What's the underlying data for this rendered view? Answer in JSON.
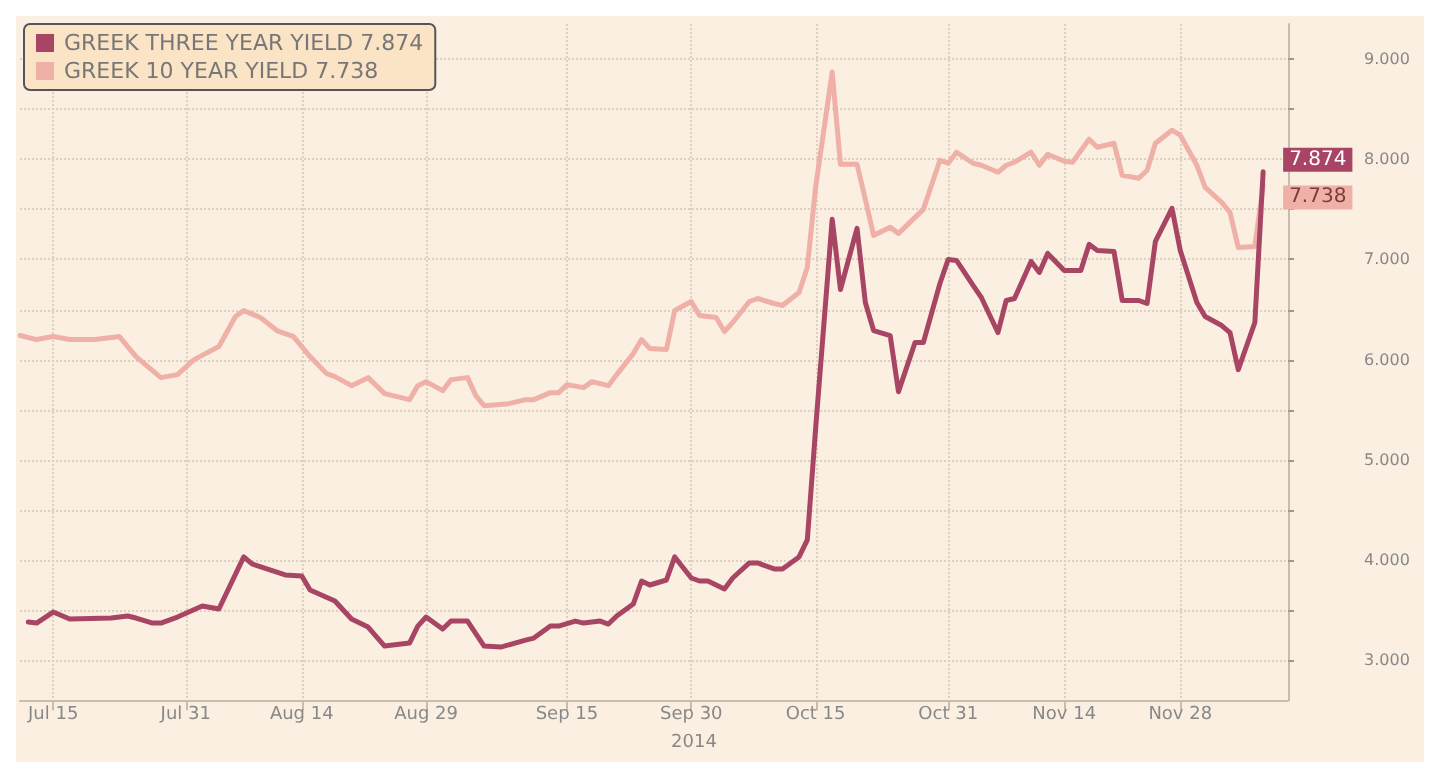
{
  "chart_data": {
    "type": "line",
    "xlabel": "2014",
    "legend": "top left",
    "grid": true,
    "marker": "none",
    "line_style": "solid",
    "xlim": [
      "2014-07-11",
      "2014-12-11"
    ],
    "xticks": [
      {
        "value": "2014-07-15",
        "label": "Jul 15"
      },
      {
        "value": "2014-07-31",
        "label": "Jul 31"
      },
      {
        "value": "2014-08-14",
        "label": "Aug 14"
      },
      {
        "value": "2014-08-29",
        "label": "Aug 29"
      },
      {
        "value": "2014-09-15",
        "label": "Sep 15"
      },
      {
        "value": "2014-09-30",
        "label": "Sep 30"
      },
      {
        "value": "2014-10-15",
        "label": "Oct 15"
      },
      {
        "value": "2014-10-31",
        "label": "Oct 31"
      },
      {
        "value": "2014-11-14",
        "label": "Nov 14"
      },
      {
        "value": "2014-11-28",
        "label": "Nov 28"
      }
    ],
    "ylim": [
      2.6,
      9.35
    ],
    "yticks": [
      {
        "value": 3,
        "label": "3.000"
      },
      {
        "value": 3.5,
        "label": null
      },
      {
        "value": 4,
        "label": "4.000"
      },
      {
        "value": 4.5,
        "label": null
      },
      {
        "value": 5,
        "label": "5.000"
      },
      {
        "value": 5.5,
        "label": null
      },
      {
        "value": 6,
        "label": "6.000"
      },
      {
        "value": 6.5,
        "label": null
      },
      {
        "value": 7,
        "label": "7.000"
      },
      {
        "value": 7.5,
        "label": null
      },
      {
        "value": 8,
        "label": "8.000"
      },
      {
        "value": 8.5,
        "label": null
      },
      {
        "value": 9,
        "label": "9.000"
      }
    ],
    "series": [
      {
        "name": "GREEK THREE YEAR YIELD 7.874",
        "color": "#a84564",
        "value_labels": [
          null,
          null,
          null,
          null,
          null,
          null,
          null,
          null,
          null,
          null,
          null,
          null,
          null,
          null,
          null,
          null,
          null,
          null,
          null,
          null,
          null,
          null,
          null,
          null,
          null,
          null,
          null,
          null,
          null,
          null,
          null,
          null,
          null,
          null,
          null,
          null,
          null,
          null,
          null,
          null,
          null,
          null,
          null,
          null,
          null,
          null,
          null,
          null,
          null,
          null,
          null,
          null,
          null,
          null,
          null,
          null,
          null,
          null,
          null,
          null,
          null,
          null,
          null,
          null,
          null,
          null,
          null,
          null,
          null,
          null,
          null,
          null,
          null,
          null,
          null,
          null,
          null,
          null,
          null,
          null,
          null,
          null,
          null,
          null,
          null,
          null,
          null,
          null,
          null,
          null,
          null,
          null,
          "7.874"
        ],
        "x": [
          "2014-07-12",
          "2014-07-13",
          "2014-07-15",
          "2014-07-17",
          "2014-07-22",
          "2014-07-24",
          "2014-07-25",
          "2014-07-27",
          "2014-07-28",
          "2014-07-30",
          "2014-08-02",
          "2014-08-04",
          "2014-08-07",
          "2014-08-08",
          "2014-08-12",
          "2014-08-14",
          "2014-08-15",
          "2014-08-18",
          "2014-08-20",
          "2014-08-22",
          "2014-08-24",
          "2014-08-27",
          "2014-08-28",
          "2014-08-29",
          "2014-08-31",
          "2014-09-01",
          "2014-09-03",
          "2014-09-05",
          "2014-09-07",
          "2014-09-10",
          "2014-09-11",
          "2014-09-13",
          "2014-09-14",
          "2014-09-16",
          "2014-09-17",
          "2014-09-19",
          "2014-09-20",
          "2014-09-21",
          "2014-09-23",
          "2014-09-24",
          "2014-09-25",
          "2014-09-27",
          "2014-09-28",
          "2014-09-30",
          "2014-10-01",
          "2014-10-02",
          "2014-10-04",
          "2014-10-05",
          "2014-10-07",
          "2014-10-08",
          "2014-10-10",
          "2014-10-11",
          "2014-10-13",
          "2014-10-14",
          "2014-10-15",
          "2014-10-17",
          "2014-10-18",
          "2014-10-20",
          "2014-10-21",
          "2014-10-22",
          "2014-10-24",
          "2014-10-25",
          "2014-10-27",
          "2014-10-28",
          "2014-10-30",
          "2014-10-31",
          "2014-11-01",
          "2014-11-03",
          "2014-11-04",
          "2014-11-06",
          "2014-11-07",
          "2014-11-08",
          "2014-11-10",
          "2014-11-11",
          "2014-11-12",
          "2014-11-14",
          "2014-11-16",
          "2014-11-17",
          "2014-11-18",
          "2014-11-20",
          "2014-11-21",
          "2014-11-23",
          "2014-11-24",
          "2014-11-25",
          "2014-11-27",
          "2014-11-28",
          "2014-11-30",
          "2014-12-01",
          "2014-12-03",
          "2014-12-04",
          "2014-12-05",
          "2014-12-07",
          "2014-12-08"
        ],
        "values": [
          3.38,
          3.37,
          3.48,
          3.41,
          3.42,
          3.44,
          3.42,
          3.37,
          3.37,
          3.43,
          3.54,
          3.51,
          4.03,
          3.96,
          3.85,
          3.84,
          3.7,
          3.59,
          3.41,
          3.33,
          3.14,
          3.17,
          3.34,
          3.43,
          3.31,
          3.39,
          3.39,
          3.14,
          3.13,
          3.2,
          3.22,
          3.34,
          3.34,
          3.39,
          3.37,
          3.39,
          3.36,
          3.44,
          3.56,
          3.79,
          3.75,
          3.8,
          4.03,
          3.82,
          3.79,
          3.79,
          3.71,
          3.82,
          3.97,
          3.97,
          3.91,
          3.91,
          4.03,
          4.2,
          5.31,
          7.4,
          6.7,
          7.31,
          6.57,
          6.29,
          6.24,
          5.68,
          6.17,
          6.17,
          6.76,
          7.0,
          6.99,
          6.74,
          6.62,
          6.27,
          6.59,
          6.61,
          6.98,
          6.87,
          7.06,
          6.89,
          6.89,
          7.15,
          7.09,
          7.08,
          6.59,
          6.59,
          6.56,
          7.18,
          7.51,
          7.09,
          6.57,
          6.43,
          6.34,
          6.27,
          5.9,
          6.37,
          7.874
        ]
      },
      {
        "name": "GREEK 10 YEAR YIELD 7.738",
        "color": "#efb0a8",
        "value_labels": [
          null,
          null,
          null,
          null,
          null,
          null,
          null,
          null,
          null,
          null,
          null,
          null,
          null,
          null,
          null,
          null,
          null,
          null,
          null,
          null,
          null,
          null,
          null,
          null,
          null,
          null,
          null,
          null,
          null,
          null,
          null,
          null,
          null,
          null,
          null,
          null,
          null,
          null,
          null,
          null,
          null,
          null,
          null,
          null,
          null,
          null,
          null,
          null,
          null,
          null,
          null,
          null,
          null,
          null,
          null,
          null,
          null,
          null,
          null,
          null,
          null,
          null,
          null,
          null,
          null,
          null,
          null,
          null,
          null,
          null,
          null,
          null,
          null,
          null,
          null,
          null,
          null,
          null,
          null,
          null,
          null,
          null,
          null,
          null,
          null,
          null,
          null,
          null,
          null,
          null,
          null,
          null,
          null,
          null,
          null,
          "7.738"
        ],
        "x": [
          "2014-07-11",
          "2014-07-13",
          "2014-07-15",
          "2014-07-17",
          "2014-07-20",
          "2014-07-23",
          "2014-07-25",
          "2014-07-27",
          "2014-07-28",
          "2014-07-30",
          "2014-08-01",
          "2014-08-04",
          "2014-08-06",
          "2014-08-07",
          "2014-08-09",
          "2014-08-11",
          "2014-08-13",
          "2014-08-15",
          "2014-08-17",
          "2014-08-18",
          "2014-08-20",
          "2014-08-22",
          "2014-08-24",
          "2014-08-27",
          "2014-08-28",
          "2014-08-29",
          "2014-08-31",
          "2014-09-01",
          "2014-09-03",
          "2014-09-04",
          "2014-09-05",
          "2014-09-08",
          "2014-09-10",
          "2014-09-11",
          "2014-09-13",
          "2014-09-14",
          "2014-09-15",
          "2014-09-17",
          "2014-09-18",
          "2014-09-20",
          "2014-09-21",
          "2014-09-23",
          "2014-09-24",
          "2014-09-25",
          "2014-09-27",
          "2014-09-28",
          "2014-09-30",
          "2014-10-01",
          "2014-10-03",
          "2014-10-04",
          "2014-10-05",
          "2014-10-07",
          "2014-10-08",
          "2014-10-10",
          "2014-10-11",
          "2014-10-13",
          "2014-10-14",
          "2014-10-15",
          "2014-10-17",
          "2014-10-18",
          "2014-10-20",
          "2014-10-21",
          "2014-10-22",
          "2014-10-24",
          "2014-10-25",
          "2014-10-27",
          "2014-10-28",
          "2014-10-30",
          "2014-10-31",
          "2014-11-01",
          "2014-11-03",
          "2014-11-04",
          "2014-11-06",
          "2014-11-07",
          "2014-11-08",
          "2014-11-10",
          "2014-11-11",
          "2014-11-12",
          "2014-11-14",
          "2014-11-15",
          "2014-11-17",
          "2014-11-18",
          "2014-11-20",
          "2014-11-21",
          "2014-11-23",
          "2014-11-24",
          "2014-11-25",
          "2014-11-27",
          "2014-11-28",
          "2014-11-30",
          "2014-12-01",
          "2014-12-03",
          "2014-12-04",
          "2014-12-05",
          "2014-12-07",
          "2014-12-08"
        ],
        "values": [
          6.24,
          6.2,
          6.23,
          6.2,
          6.2,
          6.23,
          6.03,
          5.89,
          5.82,
          5.85,
          6.0,
          6.13,
          6.43,
          6.49,
          6.42,
          6.29,
          6.23,
          6.03,
          5.86,
          5.83,
          5.74,
          5.82,
          5.66,
          5.6,
          5.74,
          5.78,
          5.69,
          5.8,
          5.82,
          5.64,
          5.54,
          5.56,
          5.6,
          5.6,
          5.67,
          5.67,
          5.75,
          5.72,
          5.78,
          5.74,
          5.85,
          6.06,
          6.2,
          6.11,
          6.1,
          6.49,
          6.58,
          6.44,
          6.42,
          6.28,
          6.37,
          6.58,
          6.61,
          6.56,
          6.54,
          6.67,
          6.92,
          7.72,
          8.87,
          7.95,
          7.95,
          7.6,
          7.24,
          7.32,
          7.26,
          7.42,
          7.5,
          7.99,
          7.96,
          8.07,
          7.96,
          7.94,
          7.87,
          7.94,
          7.97,
          8.07,
          7.94,
          8.05,
          7.98,
          7.97,
          8.2,
          8.12,
          8.16,
          7.84,
          7.81,
          7.89,
          8.16,
          8.29,
          8.24,
          7.94,
          7.72,
          7.57,
          7.47,
          7.12,
          7.13,
          7.738
        ]
      }
    ]
  }
}
